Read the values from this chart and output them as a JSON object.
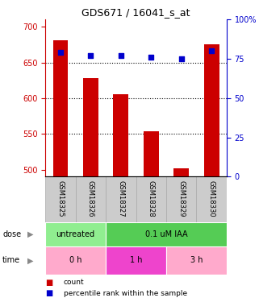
{
  "title": "GDS671 / 16041_s_at",
  "samples": [
    "GSM18325",
    "GSM18326",
    "GSM18327",
    "GSM18328",
    "GSM18329",
    "GSM18330"
  ],
  "counts": [
    681,
    628,
    605,
    554,
    502,
    676
  ],
  "percentiles": [
    79,
    77,
    77,
    76,
    75,
    80
  ],
  "ylim_left": [
    490,
    710
  ],
  "ylim_right": [
    0,
    100
  ],
  "yticks_left": [
    500,
    550,
    600,
    650,
    700
  ],
  "yticks_right": [
    0,
    25,
    50,
    75,
    100
  ],
  "bar_color": "#cc0000",
  "dot_color": "#0000cc",
  "dose_labels": [
    {
      "label": "untreated",
      "span": [
        0,
        2
      ],
      "color": "#90ee90"
    },
    {
      "label": "0.1 uM IAA",
      "span": [
        2,
        6
      ],
      "color": "#55cc55"
    }
  ],
  "time_labels": [
    {
      "label": "0 h",
      "span": [
        0,
        2
      ],
      "color": "#ffaacc"
    },
    {
      "label": "1 h",
      "span": [
        2,
        4
      ],
      "color": "#ee44cc"
    },
    {
      "label": "3 h",
      "span": [
        4,
        6
      ],
      "color": "#ffaacc"
    }
  ],
  "legend_items": [
    {
      "label": "count",
      "color": "#cc0000"
    },
    {
      "label": "percentile rank within the sample",
      "color": "#0000cc"
    }
  ],
  "grid_yticks": [
    550,
    600,
    650
  ],
  "left_axis_color": "#cc0000",
  "right_axis_color": "#0000cc",
  "base_value": 490,
  "sample_box_color": "#cccccc",
  "sample_box_edge_color": "#aaaaaa"
}
